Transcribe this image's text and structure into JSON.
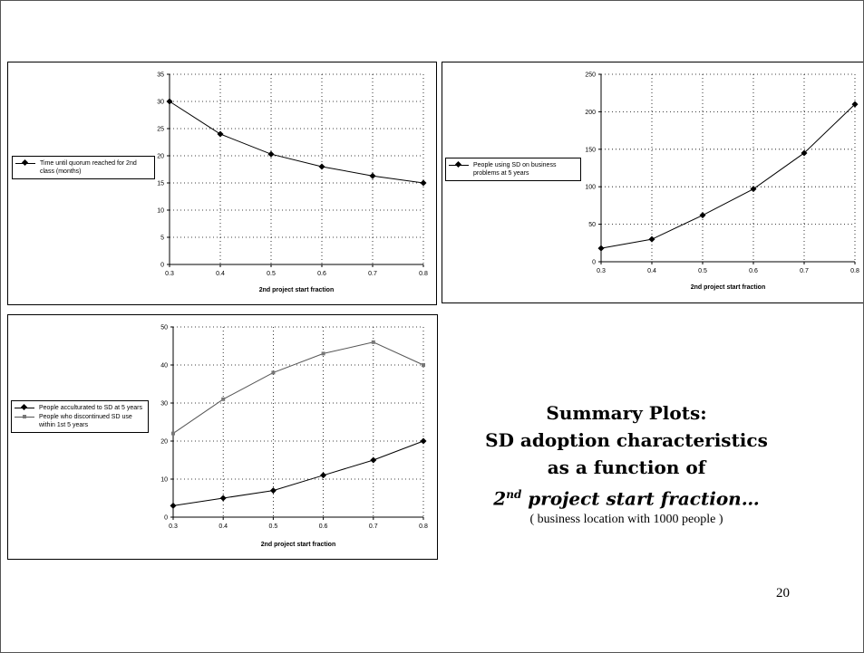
{
  "summary": {
    "line1": "Summary Plots:",
    "line2": "SD adoption characteristics",
    "line3": "as a function of",
    "line4_prefix": "2",
    "line4_sup": "nd",
    "line4_rest": " project start fraction…",
    "line5": "( business location with 1000 people )"
  },
  "page_number": "20",
  "chart_data": [
    {
      "type": "line",
      "xlabel": "2nd project start fraction",
      "x": [
        0.3,
        0.4,
        0.5,
        0.6,
        0.7,
        0.8
      ],
      "xticks": [
        "0.3",
        "0.4",
        "0.5",
        "0.6",
        "0.7",
        "0.8"
      ],
      "ylim": [
        0,
        35
      ],
      "yticks": [
        0,
        5,
        10,
        15,
        20,
        25,
        30,
        35
      ],
      "grid": true,
      "legend_position": "left",
      "series": [
        {
          "name": "Time until quorum reached for 2nd class (months)",
          "values": [
            30,
            24,
            20.3,
            18,
            16.3,
            15
          ],
          "marker": "diamond",
          "color": "#000000"
        }
      ]
    },
    {
      "type": "line",
      "xlabel": "2nd project start fraction",
      "x": [
        0.3,
        0.4,
        0.5,
        0.6,
        0.7,
        0.8
      ],
      "xticks": [
        "0.3",
        "0.4",
        "0.5",
        "0.6",
        "0.7",
        "0.8"
      ],
      "ylim": [
        0,
        250
      ],
      "yticks": [
        0,
        50,
        100,
        150,
        200,
        250
      ],
      "grid": true,
      "legend_position": "left",
      "series": [
        {
          "name": "People using SD on business problems at 5 years",
          "values": [
            18,
            30,
            62,
            97,
            145,
            210
          ],
          "marker": "diamond",
          "color": "#000000"
        }
      ]
    },
    {
      "type": "line",
      "xlabel": "2nd project start fraction",
      "x": [
        0.3,
        0.4,
        0.5,
        0.6,
        0.7,
        0.8
      ],
      "xticks": [
        "0.3",
        "0.4",
        "0.5",
        "0.6",
        "0.7",
        "0.8"
      ],
      "ylim": [
        0,
        50
      ],
      "yticks": [
        0,
        10,
        20,
        30,
        40,
        50
      ],
      "grid": true,
      "legend_position": "left",
      "series": [
        {
          "name": "People acculturated to SD at 5 years",
          "values": [
            3,
            5,
            7,
            11,
            15,
            20
          ],
          "marker": "diamond",
          "color": "#000000"
        },
        {
          "name": "People who discontinued SD use within 1st 5 years",
          "values": [
            22,
            31,
            38,
            43,
            46,
            40
          ],
          "marker": "square",
          "color": "#555555"
        }
      ]
    }
  ]
}
